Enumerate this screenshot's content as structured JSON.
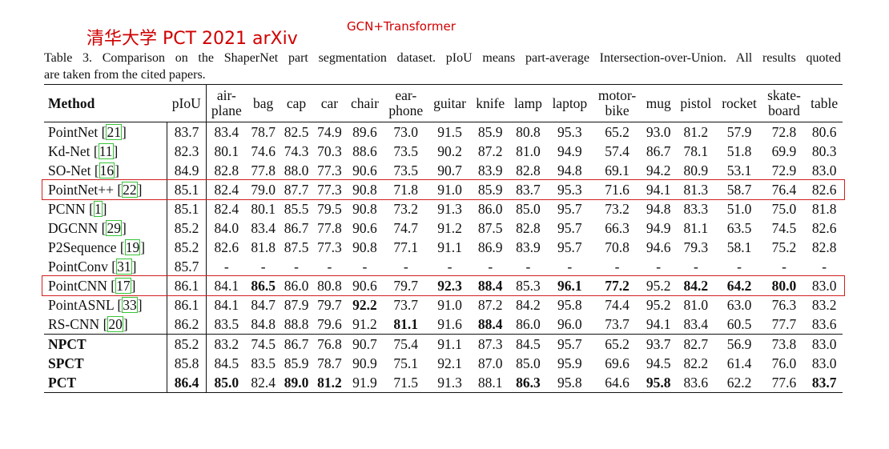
{
  "annotations": {
    "top_note": "GCN+Transformer",
    "handwritten": "清华大学 PCT 2021 arXiv",
    "highlight_color": "#d21f1f"
  },
  "caption": {
    "line1": "Table 3. Comparison on the ShaperNet part segmentation dataset. pIoU means part-average Intersection-over-Union. All results quoted",
    "line2": "are taken from the cited papers."
  },
  "table": {
    "header": {
      "method": "Method",
      "piou": "pIoU",
      "cols": [
        {
          "l1": "air-",
          "l2": "plane"
        },
        {
          "l1": "bag"
        },
        {
          "l1": "cap"
        },
        {
          "l1": "car"
        },
        {
          "l1": "chair"
        },
        {
          "l1": "ear-",
          "l2": "phone"
        },
        {
          "l1": "guitar"
        },
        {
          "l1": "knife"
        },
        {
          "l1": "lamp"
        },
        {
          "l1": "laptop"
        },
        {
          "l1": "motor-",
          "l2": "bike"
        },
        {
          "l1": "mug"
        },
        {
          "l1": "pistol"
        },
        {
          "l1": "rocket"
        },
        {
          "l1": "skate-",
          "l2": "board"
        },
        {
          "l1": "table"
        }
      ]
    },
    "rows": [
      {
        "name": "PointNet",
        "cite": "21",
        "piou": "83.7",
        "vals": [
          "83.4",
          "78.7",
          "82.5",
          "74.9",
          "89.6",
          "73.0",
          "91.5",
          "85.9",
          "80.8",
          "95.3",
          "65.2",
          "93.0",
          "81.2",
          "57.9",
          "72.8",
          "80.6"
        ],
        "bold": []
      },
      {
        "name": "Kd-Net",
        "cite": "11",
        "piou": "82.3",
        "vals": [
          "80.1",
          "74.6",
          "74.3",
          "70.3",
          "88.6",
          "73.5",
          "90.2",
          "87.2",
          "81.0",
          "94.9",
          "57.4",
          "86.7",
          "78.1",
          "51.8",
          "69.9",
          "80.3"
        ],
        "bold": []
      },
      {
        "name": "SO-Net",
        "cite": "16",
        "piou": "84.9",
        "vals": [
          "82.8",
          "77.8",
          "88.0",
          "77.3",
          "90.6",
          "73.5",
          "90.7",
          "83.9",
          "82.8",
          "94.8",
          "69.1",
          "94.2",
          "80.9",
          "53.1",
          "72.9",
          "83.0"
        ],
        "bold": []
      },
      {
        "name": "PointNet++",
        "cite": "22",
        "piou": "85.1",
        "vals": [
          "82.4",
          "79.0",
          "87.7",
          "77.3",
          "90.8",
          "71.8",
          "91.0",
          "85.9",
          "83.7",
          "95.3",
          "71.6",
          "94.1",
          "81.3",
          "58.7",
          "76.4",
          "82.6"
        ],
        "bold": []
      },
      {
        "name": "PCNN",
        "cite": "1",
        "piou": "85.1",
        "vals": [
          "82.4",
          "80.1",
          "85.5",
          "79.5",
          "90.8",
          "73.2",
          "91.3",
          "86.0",
          "85.0",
          "95.7",
          "73.2",
          "94.8",
          "83.3",
          "51.0",
          "75.0",
          "81.8"
        ],
        "bold": []
      },
      {
        "name": "DGCNN",
        "cite": "29",
        "piou": "85.2",
        "vals": [
          "84.0",
          "83.4",
          "86.7",
          "77.8",
          "90.6",
          "74.7",
          "91.2",
          "87.5",
          "82.8",
          "95.7",
          "66.3",
          "94.9",
          "81.1",
          "63.5",
          "74.5",
          "82.6"
        ],
        "bold": []
      },
      {
        "name": "P2Sequence",
        "cite": "19",
        "piou": "85.2",
        "vals": [
          "82.6",
          "81.8",
          "87.5",
          "77.3",
          "90.8",
          "77.1",
          "91.1",
          "86.9",
          "83.9",
          "95.7",
          "70.8",
          "94.6",
          "79.3",
          "58.1",
          "75.2",
          "82.8"
        ],
        "bold": []
      },
      {
        "name": "PointConv",
        "cite": "31",
        "piou": "85.7",
        "vals": [
          "-",
          "-",
          "-",
          "-",
          "-",
          "-",
          "-",
          "-",
          "-",
          "-",
          "-",
          "-",
          "-",
          "-",
          "-",
          "-"
        ],
        "bold": []
      },
      {
        "name": "PointCNN",
        "cite": "17",
        "piou": "86.1",
        "vals": [
          "84.1",
          "86.5",
          "86.0",
          "80.8",
          "90.6",
          "79.7",
          "92.3",
          "88.4",
          "85.3",
          "96.1",
          "77.2",
          "95.2",
          "84.2",
          "64.2",
          "80.0",
          "83.0"
        ],
        "bold": [
          1,
          6,
          7,
          9,
          10,
          12,
          13,
          14
        ]
      },
      {
        "name": "PointASNL",
        "cite": "33",
        "piou": "86.1",
        "vals": [
          "84.1",
          "84.7",
          "87.9",
          "79.7",
          "92.2",
          "73.7",
          "91.0",
          "87.2",
          "84.2",
          "95.8",
          "74.4",
          "95.2",
          "81.0",
          "63.0",
          "76.3",
          "83.2"
        ],
        "bold": [
          4
        ]
      },
      {
        "name": "RS-CNN",
        "cite": "20",
        "piou": "86.2",
        "vals": [
          "83.5",
          "84.8",
          "88.8",
          "79.6",
          "91.2",
          "81.1",
          "91.6",
          "88.4",
          "86.0",
          "96.0",
          "73.7",
          "94.1",
          "83.4",
          "60.5",
          "77.7",
          "83.6"
        ],
        "bold": [
          5,
          7
        ]
      },
      {
        "name": "NPCT",
        "cite": "",
        "piou": "85.2",
        "vals": [
          "83.2",
          "74.5",
          "86.7",
          "76.8",
          "90.7",
          "75.4",
          "91.1",
          "87.3",
          "84.5",
          "95.7",
          "65.2",
          "93.7",
          "82.7",
          "56.9",
          "73.8",
          "83.0"
        ],
        "bold": [],
        "name_bold": true,
        "sep": true
      },
      {
        "name": "SPCT",
        "cite": "",
        "piou": "85.8",
        "vals": [
          "84.5",
          "83.5",
          "85.9",
          "78.7",
          "90.9",
          "75.1",
          "92.1",
          "87.0",
          "85.0",
          "95.9",
          "69.6",
          "94.5",
          "82.2",
          "61.4",
          "76.0",
          "83.0"
        ],
        "bold": [],
        "name_bold": true
      },
      {
        "name": "PCT",
        "cite": "",
        "piou": "86.4",
        "vals": [
          "85.0",
          "82.4",
          "89.0",
          "81.2",
          "91.9",
          "71.5",
          "91.3",
          "88.1",
          "86.3",
          "95.8",
          "64.6",
          "95.8",
          "83.6",
          "62.2",
          "77.6",
          "83.7"
        ],
        "bold": [
          0,
          2,
          3,
          8,
          11,
          15
        ],
        "name_bold": true,
        "piou_bold": true
      }
    ],
    "highlighted_rows": [
      "PointNet++",
      "PointCNN"
    ]
  }
}
